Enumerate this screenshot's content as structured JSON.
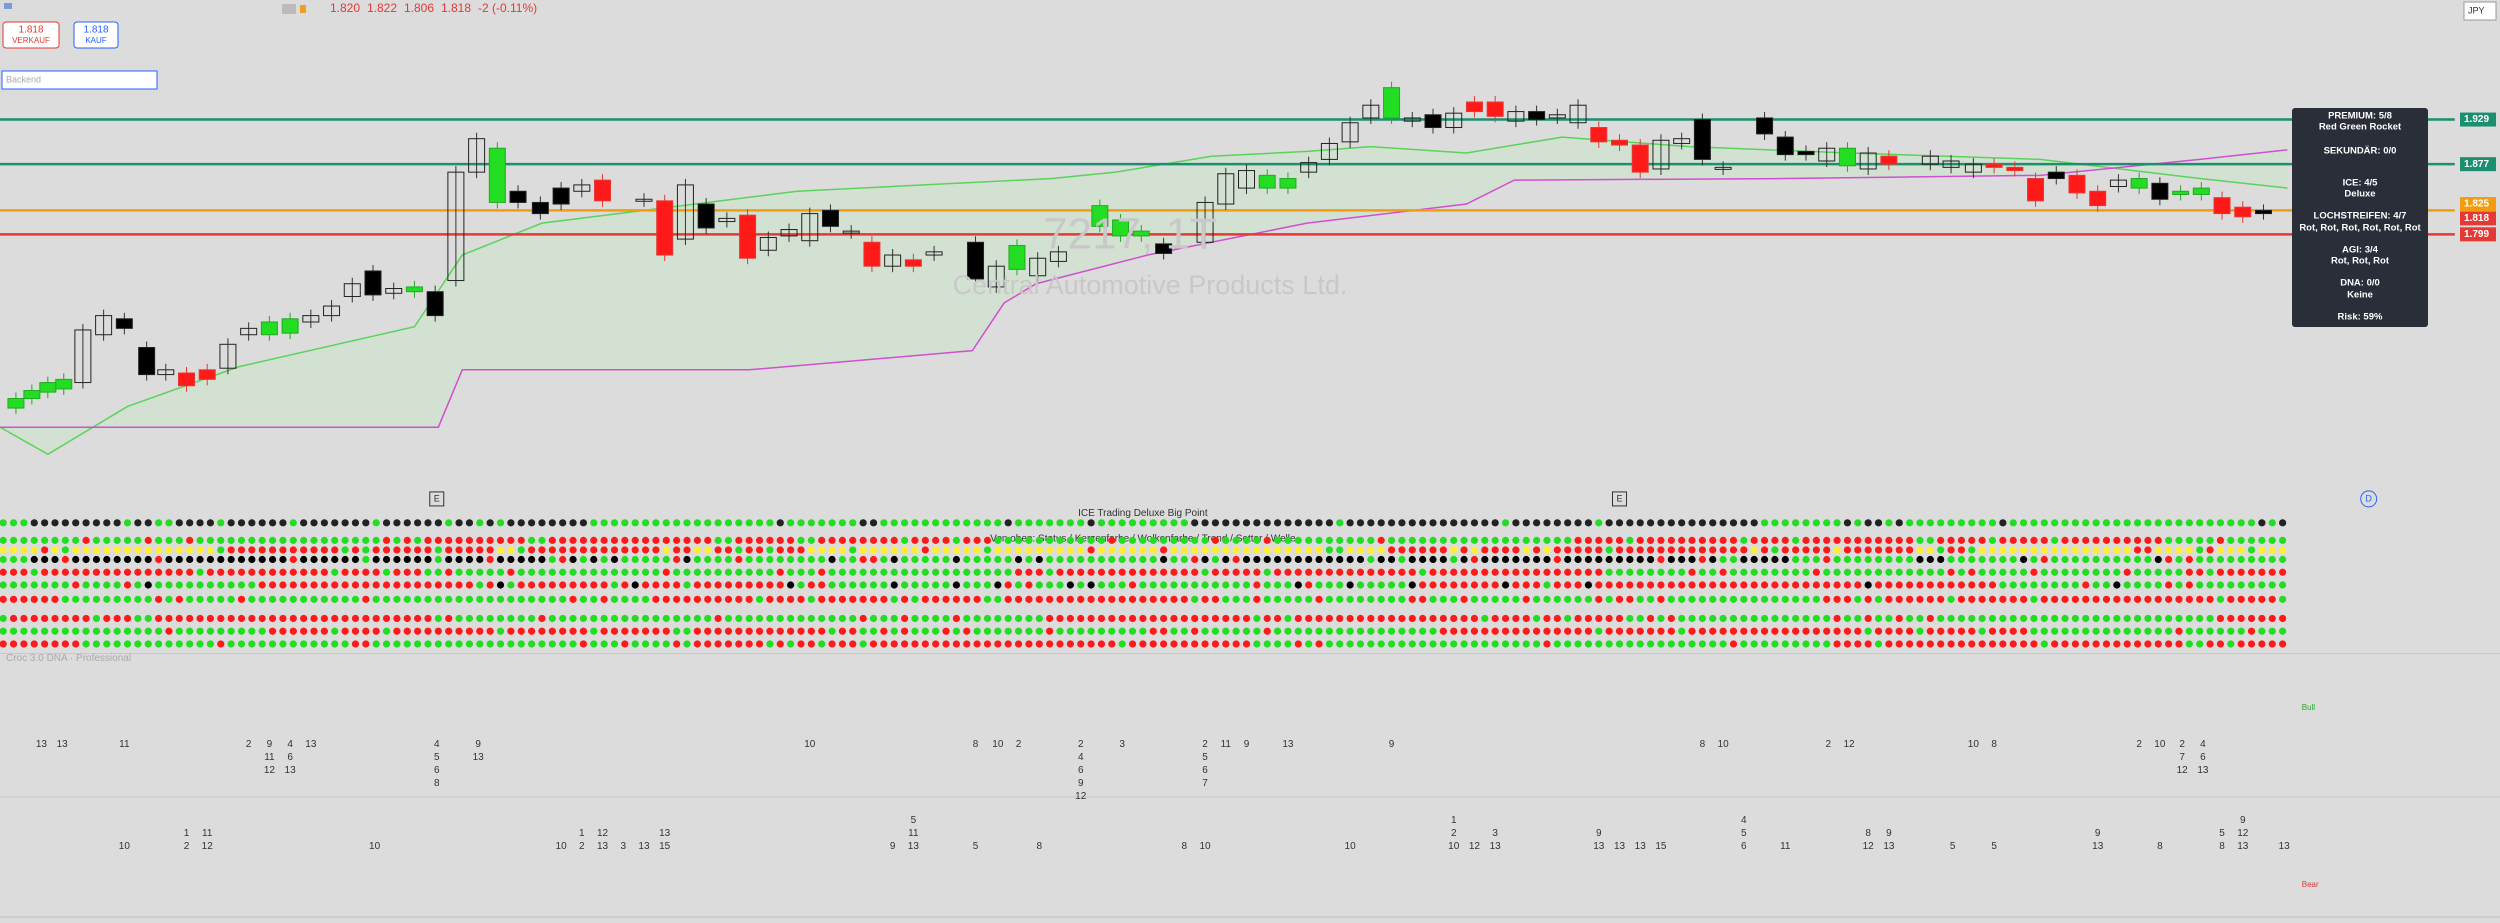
{
  "header": {
    "currency": "JPY",
    "ohlc": [
      "1.820",
      "1.822",
      "1.806",
      "1.818",
      "-2 (-0.11%)"
    ],
    "sell": {
      "price": "1.818",
      "label": "VERKAUF"
    },
    "buy": {
      "price": "1.818",
      "label": "KAUF"
    },
    "toolbar_input": "Backend"
  },
  "price_labels": [
    "1.929",
    "1.877",
    "1.825",
    "1.818",
    "1.799"
  ],
  "watermark": {
    "symbol": "7217, 1T",
    "name": "Central Automotive Products Ltd."
  },
  "info_box": [
    "PREMIUM: 5/8",
    "Red Green Rocket",
    "SEKUNDÄR: 0/0",
    "ICE: 4/5",
    "Deluxe",
    "LOCHSTREIFEN: 4/7",
    "Rot, Rot, Rot, Rot, Rot, Rot",
    "AGI: 3/4",
    "Rot, Rot, Rot",
    "DNA: 0/0",
    "Keine",
    "Risk: 59%"
  ],
  "markers": [
    "E",
    "E",
    "D"
  ],
  "indicator": {
    "title": "ICE Trading Deluxe Big Point",
    "subtitle": "Von oben: Status / Kerzenfarbe / Wolkenfarbe / Trend / Setter / Welle"
  },
  "pane2": {
    "title": "Croc 3.0 DNA · Professional",
    "bull": "Bull",
    "bear": "Bear",
    "top_numbers": [
      [
        "13"
      ],
      [
        "13"
      ],
      [
        "11"
      ],
      [
        "2"
      ],
      [
        "9",
        "11",
        "12"
      ],
      [
        "4",
        "6",
        "13"
      ],
      [
        "13"
      ],
      [
        "4",
        "5",
        "6",
        "8"
      ],
      [
        "9",
        "13"
      ],
      [
        "10"
      ],
      [
        "8"
      ],
      [
        "10"
      ],
      [
        "2"
      ],
      [
        "2",
        "4",
        "6",
        "9",
        "12"
      ],
      [
        "3"
      ],
      [
        "2",
        "5",
        "6",
        "7"
      ],
      [
        "11"
      ],
      [
        "9"
      ],
      [
        "13"
      ],
      [
        "9"
      ],
      [
        "8"
      ],
      [
        "10"
      ],
      [
        "2"
      ],
      [
        "12"
      ],
      [
        "10"
      ],
      [
        "8"
      ],
      [
        "2"
      ],
      [
        "10"
      ],
      [
        "2",
        "7",
        "12"
      ],
      [
        "4",
        "6",
        "13"
      ]
    ],
    "bottom_numbers": [
      [
        "10"
      ],
      [
        "1",
        "2"
      ],
      [
        "11",
        "12"
      ],
      [
        "10"
      ],
      [
        "10"
      ],
      [
        "1",
        "2"
      ],
      [
        "12",
        "13"
      ],
      [
        "3"
      ],
      [
        "13"
      ],
      [
        "13",
        "15"
      ],
      [
        "9"
      ],
      [
        "5",
        "11",
        "13"
      ],
      [
        "5"
      ],
      [
        "8"
      ],
      [
        "8"
      ],
      [
        "10"
      ],
      [
        "10"
      ],
      [
        "1",
        "2",
        "10"
      ],
      [
        "12"
      ],
      [
        "3",
        "13"
      ],
      [
        "9",
        "13"
      ],
      [
        "13"
      ],
      [
        "13"
      ],
      [
        "15"
      ],
      [
        "4",
        "5",
        "6"
      ],
      [
        "11"
      ],
      [
        "8",
        "12"
      ],
      [
        "9",
        "13"
      ],
      [
        "5"
      ],
      [
        "5"
      ],
      [
        "9",
        "13"
      ],
      [
        "8"
      ],
      [
        "5",
        "8"
      ],
      [
        "9",
        "12",
        "13"
      ],
      [
        "13"
      ]
    ]
  }
}
